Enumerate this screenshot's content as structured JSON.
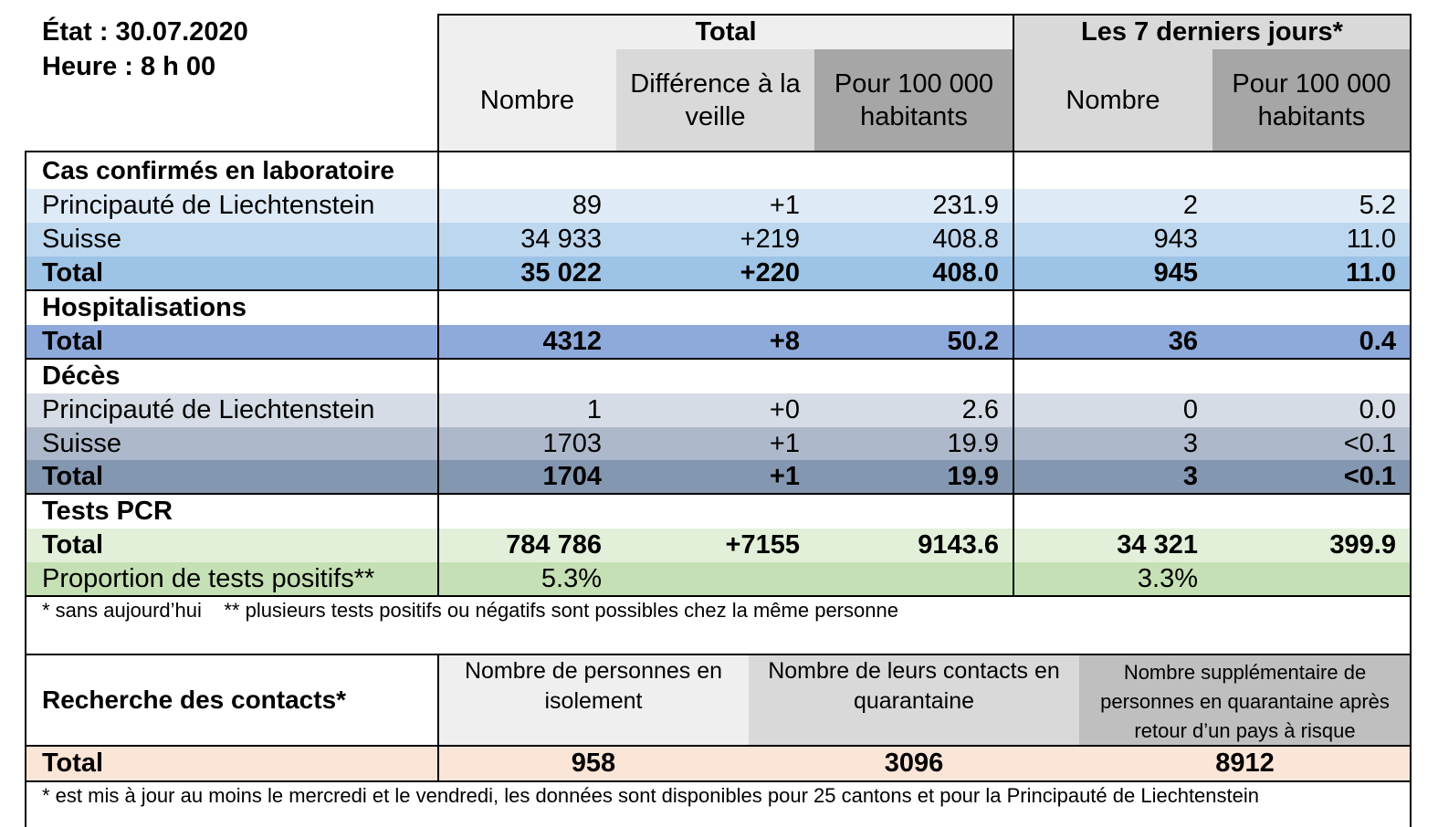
{
  "header": {
    "etat": "État : 30.07.2020",
    "heure": "Heure : 8 h 00",
    "total_group": "Total",
    "week_group": "Les 7 derniers jours*",
    "col_nombre": "Nombre",
    "col_diff": "Différence à la veille",
    "col_pour": "Pour 100 000 habitants",
    "col_week_nombre": "Nombre",
    "col_week_pour": "Pour 100 000 habitants"
  },
  "colors": {
    "header_light": "#efefef",
    "header_mid": "#d9d9d9",
    "header_dark": "#bfbfbf",
    "header_darker": "#a6a6a6",
    "cas_1": "#deebf7",
    "cas_2": "#bdd7ee",
    "cas_total": "#9dc3e6",
    "hosp_total": "#8eaadb",
    "deces_1": "#d6dce5",
    "deces_2": "#adb9ca",
    "deces_total": "#8497b0",
    "tests_1": "#e2f0d9",
    "tests_2": "#c5e0b4",
    "contacts_total": "#fbe5d6"
  },
  "sections": {
    "cas": {
      "title": "Cas confirmés en laboratoire",
      "rows": [
        {
          "label": "Principauté de Liechtenstein",
          "nombre": "89",
          "diff": "+1",
          "pour": "231.9",
          "w_nombre": "2",
          "w_pour": "5.2"
        },
        {
          "label": "Suisse",
          "nombre": "34 933",
          "diff": "+219",
          "pour": "408.8",
          "w_nombre": "943",
          "w_pour": "11.0"
        },
        {
          "label": "Total",
          "nombre": "35 022",
          "diff": "+220",
          "pour": "408.0",
          "w_nombre": "945",
          "w_pour": "11.0"
        }
      ]
    },
    "hosp": {
      "title": "Hospitalisations",
      "rows": [
        {
          "label": "Total",
          "nombre": "4312",
          "diff": "+8",
          "pour": "50.2",
          "w_nombre": "36",
          "w_pour": "0.4"
        }
      ]
    },
    "deces": {
      "title": "Décès",
      "rows": [
        {
          "label": "Principauté de Liechtenstein",
          "nombre": "1",
          "diff": "+0",
          "pour": "2.6",
          "w_nombre": "0",
          "w_pour": "0.0"
        },
        {
          "label": "Suisse",
          "nombre": "1703",
          "diff": "+1",
          "pour": "19.9",
          "w_nombre": "3",
          "w_pour": "<0.1"
        },
        {
          "label": "Total",
          "nombre": "1704",
          "diff": "+1",
          "pour": "19.9",
          "w_nombre": "3",
          "w_pour": "<0.1"
        }
      ]
    },
    "tests": {
      "title": "Tests PCR",
      "total": {
        "label": "Total",
        "nombre": "784 786",
        "diff": "+7155",
        "pour": "9143.6",
        "w_nombre": "34 321",
        "w_pour": "399.9"
      },
      "prop": {
        "label": "Proportion de tests positifs**",
        "total_value": "5.3%",
        "week_value": "3.3%"
      }
    }
  },
  "footnote1": "* sans aujourd’hui    ** plusieurs tests positifs ou négatifs sont possibles chez la même personne",
  "contacts": {
    "title": "Recherche des contacts*",
    "col1": "Nombre de personnes en isolement",
    "col2": "Nombre de leurs contacts en quarantaine",
    "col3": "Nombre supplémentaire de personnes en quarantaine après retour d’un pays à risque",
    "total_label": "Total",
    "v1": "958",
    "v2": "3096",
    "v3": "8912"
  },
  "footnote2": "* est mis à jour au moins le mercredi et le vendredi, les données sont disponibles pour 25 cantons et pour la Principauté de Liechtenstein"
}
